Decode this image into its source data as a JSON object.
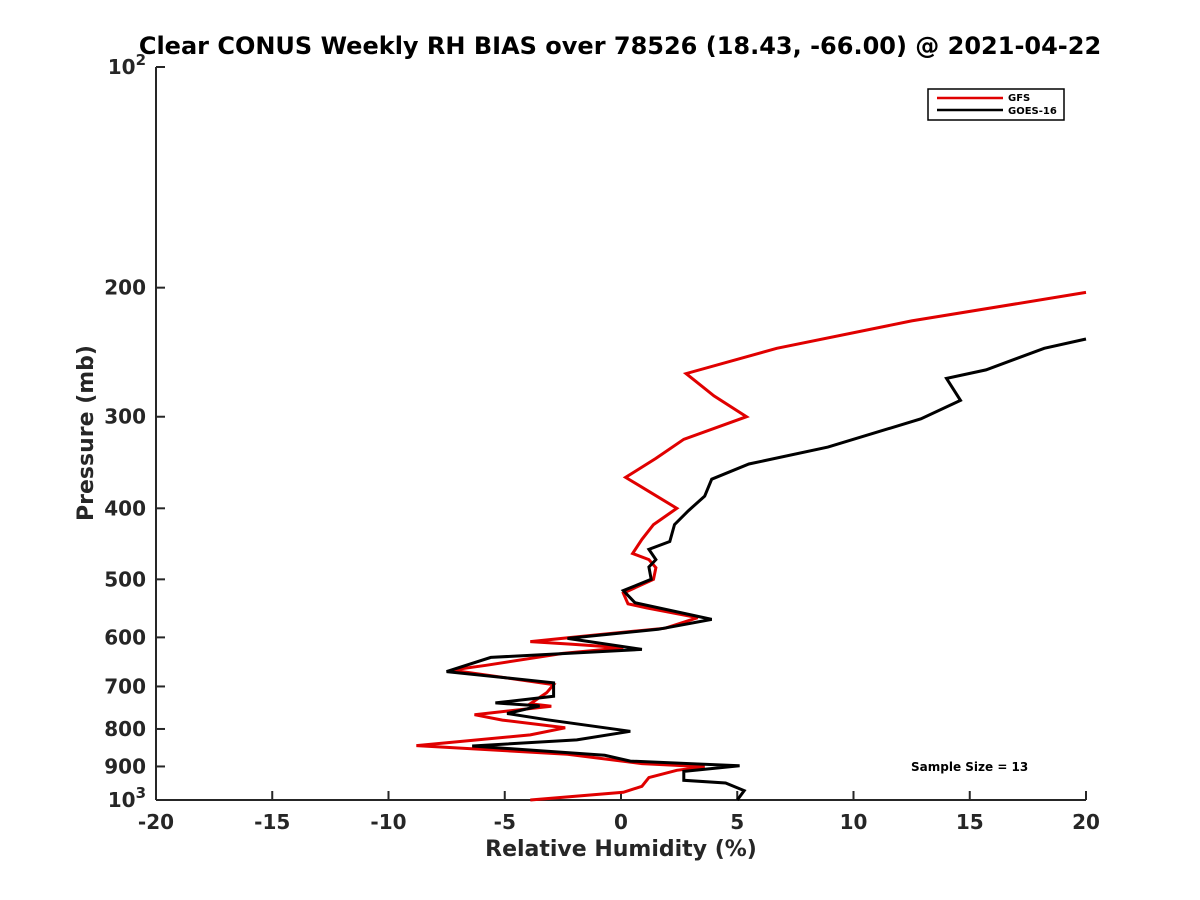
{
  "chart_data": {
    "type": "line",
    "title": "Clear CONUS Weekly RH BIAS over 78526 (18.43, -66.00) @ 2021-04-22",
    "xlabel": "Relative Humidity (%)",
    "ylabel": "Pressure (mb)",
    "xlim": [
      -20,
      20
    ],
    "ylim": [
      1000,
      100
    ],
    "yscale": "log",
    "y_reversed": true,
    "grid": false,
    "legend_position": "top-right",
    "x_ticks": [
      -20,
      -15,
      -10,
      -5,
      0,
      5,
      10,
      15,
      20
    ],
    "y_ticks": [
      100,
      200,
      300,
      400,
      500,
      600,
      700,
      800,
      900,
      1000
    ],
    "x_tick_labels": [
      "-20",
      "-15",
      "-10",
      "-5",
      "0",
      "5",
      "10",
      "15",
      "20"
    ],
    "y_tick_labels": [
      "200",
      "300",
      "400",
      "500",
      "600",
      "700",
      "800",
      "900"
    ],
    "y_tick_base": "10",
    "y_tick_exp_top": "2",
    "y_tick_exp_bottom": "3",
    "annotation": "Sample Size = 13",
    "series": [
      {
        "name": "GFS",
        "color": "#e00000",
        "points": [
          [
            20,
            203
          ],
          [
            12.5,
            222
          ],
          [
            6.7,
            242
          ],
          [
            2.8,
            262
          ],
          [
            4,
            281
          ],
          [
            5.4,
            300
          ],
          [
            2.7,
            322
          ],
          [
            1.5,
            342
          ],
          [
            0.2,
            363
          ],
          [
            1.3,
            381
          ],
          [
            2.4,
            400
          ],
          [
            1.4,
            421
          ],
          [
            0.9,
            441
          ],
          [
            0.5,
            461
          ],
          [
            1.2,
            470
          ],
          [
            1.5,
            482
          ],
          [
            1.4,
            500
          ],
          [
            0.1,
            522
          ],
          [
            0.3,
            540
          ],
          [
            1.1,
            547
          ],
          [
            3.3,
            564
          ],
          [
            1.9,
            583
          ],
          [
            -1,
            595
          ],
          [
            -3.9,
            608
          ],
          [
            -2.1,
            613
          ],
          [
            0.1,
            620
          ],
          [
            -2.5,
            631
          ],
          [
            -5.8,
            655
          ],
          [
            -7.3,
            665
          ],
          [
            -2.9,
            696
          ],
          [
            -3.2,
            714
          ],
          [
            -3.9,
            739
          ],
          [
            -3,
            745
          ],
          [
            -6.3,
            765
          ],
          [
            -5.1,
            778
          ],
          [
            -2.4,
            797
          ],
          [
            -3.9,
            815
          ],
          [
            -8.8,
            843
          ],
          [
            -2.3,
            866
          ],
          [
            0.9,
            892
          ],
          [
            3.6,
            901
          ],
          [
            2.4,
            911
          ],
          [
            1.2,
            932
          ],
          [
            0.9,
            958
          ],
          [
            0.1,
            976
          ],
          [
            -3.9,
            1000
          ]
        ]
      },
      {
        "name": "GOES-16",
        "color": "#000000",
        "points": [
          [
            20,
            235
          ],
          [
            18.2,
            242
          ],
          [
            15.7,
            259
          ],
          [
            14,
            266
          ],
          [
            14.6,
            285
          ],
          [
            12.9,
            302
          ],
          [
            8.9,
            330
          ],
          [
            5.5,
            348
          ],
          [
            3.9,
            365
          ],
          [
            3.6,
            385
          ],
          [
            2.9,
            403
          ],
          [
            2.3,
            421
          ],
          [
            2.1,
            444
          ],
          [
            1.2,
            455
          ],
          [
            1.5,
            470
          ],
          [
            1.2,
            481
          ],
          [
            1.3,
            500
          ],
          [
            0.1,
            518
          ],
          [
            0.6,
            538
          ],
          [
            3.9,
            567
          ],
          [
            1.6,
            585
          ],
          [
            -2.3,
            602
          ],
          [
            0.9,
            623
          ],
          [
            -5.6,
            639
          ],
          [
            -7.5,
            668
          ],
          [
            -2.9,
            692
          ],
          [
            -2.9,
            722
          ],
          [
            -5.4,
            737
          ],
          [
            -3.5,
            744
          ],
          [
            -4.9,
            762
          ],
          [
            -3.2,
            777
          ],
          [
            0.4,
            806
          ],
          [
            -1.9,
            828
          ],
          [
            -6.4,
            844
          ],
          [
            -0.7,
            869
          ],
          [
            0.4,
            885
          ],
          [
            5.1,
            898
          ],
          [
            2.7,
            914
          ],
          [
            2.7,
            940
          ],
          [
            4.5,
            948
          ],
          [
            5.3,
            971
          ],
          [
            5,
            1000
          ]
        ]
      }
    ]
  }
}
